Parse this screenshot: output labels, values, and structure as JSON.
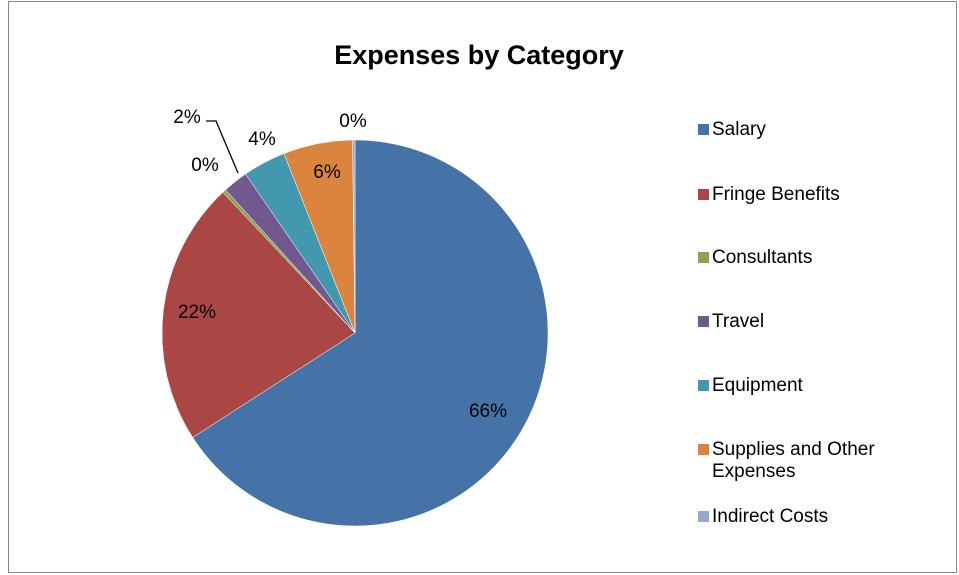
{
  "chart_data": {
    "type": "pie",
    "title": "Expenses by Category",
    "categories": [
      "Salary",
      "Fringe Benefits",
      "Consultants",
      "Travel",
      "Equipment",
      "Supplies and Other Expenses",
      "Indirect Costs"
    ],
    "values": [
      65.9,
      22.1,
      0.3,
      2.1,
      3.6,
      5.8,
      0.2
    ],
    "value_labels": [
      "66%",
      "22%",
      "0%",
      "2%",
      "4%",
      "6%",
      "0%"
    ],
    "colors": [
      "#4572a7",
      "#aa4643",
      "#89a54e",
      "#71588f",
      "#4198af",
      "#db843d",
      "#93a9cf"
    ],
    "legend": "right"
  }
}
